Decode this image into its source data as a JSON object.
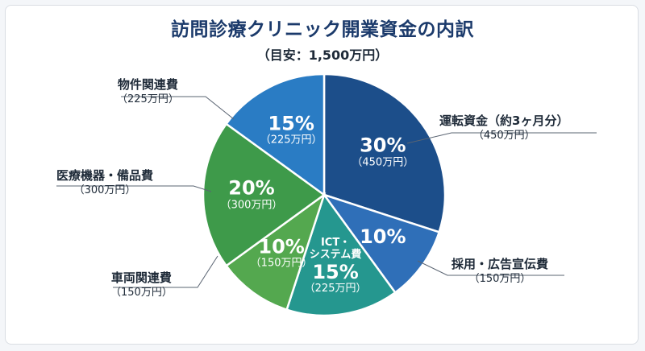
{
  "chart_data": {
    "type": "pie",
    "title": "訪問診療クリニック開業資金の内訳",
    "subtitle": "（目安：1,500万円）",
    "slices": [
      {
        "name": "運転資金（約3ヶ月分）",
        "value": 30,
        "percent_label": "30%",
        "amount": "（450万円）",
        "color": "#1c4e8a",
        "inner_name": "",
        "show_inner_amount": true
      },
      {
        "name": "採用・広告宣伝費",
        "value": 10,
        "percent_label": "10%",
        "amount": "（150万円）",
        "color": "#2f6fb8",
        "inner_name": "",
        "show_inner_amount": false
      },
      {
        "name": "ICT・システム費",
        "value": 15,
        "percent_label": "15%",
        "amount": "（225万円）",
        "color": "#25978f",
        "inner_name": "ICT・\nシステム費",
        "show_inner_amount": true
      },
      {
        "name": "車両関連費",
        "value": 10,
        "percent_label": "10%",
        "amount": "（150万円）",
        "color": "#54a84f",
        "inner_name": "",
        "show_inner_amount": true
      },
      {
        "name": "医療機器・備品費",
        "value": 20,
        "percent_label": "20%",
        "amount": "（300万円）",
        "color": "#3e9a4a",
        "inner_name": "",
        "show_inner_amount": true
      },
      {
        "name": "物件関連費",
        "value": 15,
        "percent_label": "15%",
        "amount": "（225万円）",
        "color": "#2a7cc4",
        "inner_name": "",
        "show_inner_amount": true
      }
    ],
    "outer_labels": [
      {
        "name": "運転資金（約3ヶ月分）",
        "amount": "（450万円）"
      },
      {
        "name": "採用・広告宣伝費",
        "amount": "（150万円）"
      },
      {
        "name": "車両関連費",
        "amount": "（150万円）"
      },
      {
        "name": "医療機器・備品費",
        "amount": "（300万円）"
      },
      {
        "name": "物件関連費",
        "amount": "（225万円）"
      }
    ]
  }
}
